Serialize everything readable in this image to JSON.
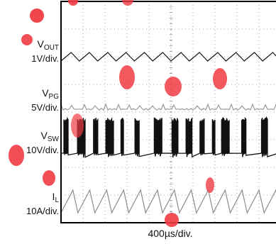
{
  "chart_data": {
    "type": "line",
    "title": "",
    "time_scale": "400µs/div.",
    "grid": true,
    "channels": [
      {
        "name": "V",
        "sub": "OUT",
        "scale": "1V/div.",
        "color": "#1a1a1a",
        "shape": "triangle-ripple",
        "cycles": 12
      },
      {
        "name": "V",
        "sub": "PG",
        "scale": "5V/div.",
        "color": "#9a9a9a",
        "shape": "flat-with-glitches"
      },
      {
        "name": "V",
        "sub": "SW",
        "scale": "10V/div.",
        "color": "#111111",
        "shape": "switching-bursts"
      },
      {
        "name": "I",
        "sub": "L",
        "scale": "10A/div.",
        "color": "#8c8c8c",
        "shape": "sawtooth",
        "cycles": 13
      }
    ]
  },
  "colors": {
    "watermark": "#f03b42",
    "grid": "#888888",
    "frame": "#000000"
  }
}
